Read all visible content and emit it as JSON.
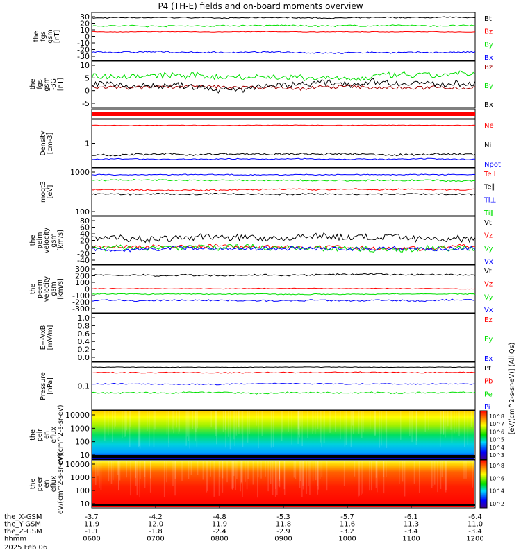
{
  "title": "P4 (TH-E) fields and on-board moments overview",
  "footer": {
    "rows": [
      {
        "label": "the_X-GSM",
        "values": [
          "-3.7",
          "-4.2",
          "-4.8",
          "-5.3",
          "-5.7",
          "-6.1",
          "-6.4"
        ]
      },
      {
        "label": "the_Y-GSM",
        "values": [
          "11.9",
          "12.0",
          "11.9",
          "11.8",
          "11.6",
          "11.3",
          "11.0"
        ]
      },
      {
        "label": "the_Z-GSM",
        "values": [
          "-1.1",
          "-1.8",
          "-2.4",
          "-2.9",
          "-3.2",
          "-3.4",
          "-3.4"
        ]
      },
      {
        "label": "hhmm",
        "values": [
          "0600",
          "0700",
          "0800",
          "0900",
          "1000",
          "1100",
          "1200"
        ]
      }
    ],
    "date": "2025 Feb 06"
  },
  "colorbar_label": "[eV/(cm^2-s-sr-eV)] (All Qs)",
  "colors": {
    "black": "#000000",
    "red": "#ff0000",
    "green": "#00e000",
    "blue": "#0000ff",
    "darkred": "#a00000"
  },
  "chart_data": [
    {
      "type": "line",
      "ylabel": "the fgs gsm [nT]",
      "yticks": [
        "30",
        "20",
        "10",
        "0",
        "-10",
        "-20",
        "-30"
      ],
      "ylim": [
        -30,
        38
      ],
      "series": [
        {
          "name": "Bt",
          "color": "#000000",
          "level": 32,
          "noise": 1.5
        },
        {
          "name": "Bz",
          "color": "#ff0000",
          "level": 11,
          "noise": 0.8
        },
        {
          "name": "By",
          "color": "#00e000",
          "level": 20,
          "noise": 2
        },
        {
          "name": "Bx",
          "color": "#0000ff",
          "level": -20,
          "noise": 2
        }
      ]
    },
    {
      "type": "line",
      "ylabel": "the fgs gsm -BG [nT]",
      "yticks": [
        "10",
        "5",
        "0",
        "-5"
      ],
      "ylim": [
        -9,
        10
      ],
      "series": [
        {
          "name": "Bz",
          "color": "#a00000",
          "level": -1,
          "noise": 1.5
        },
        {
          "name": "By",
          "color": "#00e000",
          "level": 4,
          "noise": 2.5
        },
        {
          "name": "Bx",
          "color": "#000000",
          "level": 0,
          "noise": 2.5
        }
      ]
    },
    {
      "type": "line",
      "ylabel": "",
      "yticks": [],
      "ylim": [
        0,
        1
      ],
      "series": []
    },
    {
      "type": "line",
      "ylabel": "Density [cm-3]",
      "yticks": [
        "1"
      ],
      "ylim": [
        0,
        1
      ],
      "series": [
        {
          "name": "Ne",
          "color": "#ff0000",
          "level": 0.9,
          "noise": 0.01
        },
        {
          "name": "Ni",
          "color": "#000000",
          "level": 0.25,
          "noise": 0.04
        },
        {
          "name": "Npot",
          "color": "#0000ff",
          "level": 0.15,
          "noise": 0.02
        }
      ]
    },
    {
      "type": "line",
      "ylabel": "moqt3 [eV]",
      "yticks": [
        "1000",
        "100"
      ],
      "ylim": [
        0,
        1
      ],
      "series": [
        {
          "name": "Te⊥",
          "color": "#ff0000",
          "level": 0.55,
          "noise": 0.03
        },
        {
          "name": "Te∥",
          "color": "#000000",
          "level": 0.45,
          "noise": 0.03
        },
        {
          "name": "Ti⊥",
          "color": "#0000ff",
          "level": 0.88,
          "noise": 0.02
        },
        {
          "name": "Ti∥",
          "color": "#00e000",
          "level": 0.75,
          "noise": 0.03
        }
      ]
    },
    {
      "type": "line",
      "ylabel": "the peim velocity gsm [km/s]",
      "yticks": [
        "80",
        "60",
        "40",
        "20",
        "0",
        "-20",
        "-40"
      ],
      "ylim": [
        -40,
        85
      ],
      "series": [
        {
          "name": "Vt",
          "color": "#000000",
          "level": 30,
          "noise": 18
        },
        {
          "name": "Vz",
          "color": "#ff0000",
          "level": 5,
          "noise": 10
        },
        {
          "name": "Vy",
          "color": "#00e000",
          "level": 3,
          "noise": 14
        },
        {
          "name": "Vx",
          "color": "#0000ff",
          "level": 0,
          "noise": 10
        }
      ]
    },
    {
      "type": "line",
      "ylabel": "the peem velocity gsm [km/s]",
      "yticks": [
        "300",
        "200",
        "100",
        "0",
        "-100",
        "-200",
        "-300"
      ],
      "ylim": [
        -300,
        320
      ],
      "series": [
        {
          "name": "Vt",
          "color": "#000000",
          "level": 200,
          "noise": 20
        },
        {
          "name": "Vz",
          "color": "#ff0000",
          "level": 15,
          "noise": 8
        },
        {
          "name": "Vy",
          "color": "#00e000",
          "level": -60,
          "noise": 12
        },
        {
          "name": "Vx",
          "color": "#0000ff",
          "level": -150,
          "noise": 20
        }
      ]
    },
    {
      "type": "line",
      "ylabel": "E=-VxB [mV/m]",
      "yticks": [
        "1.0",
        "0.8",
        "0.6",
        "0.4",
        "0.2",
        "0.0"
      ],
      "ylim": [
        0,
        1
      ],
      "series": [
        {
          "name": "Ez",
          "color": "#ff0000",
          "level": null,
          "noise": 0
        },
        {
          "name": "Ey",
          "color": "#00e000",
          "level": null,
          "noise": 0
        },
        {
          "name": "Ex",
          "color": "#0000ff",
          "level": null,
          "noise": 0
        }
      ]
    },
    {
      "type": "line",
      "ylabel": "Pressure [nPa]",
      "yticks": [
        "0.1"
      ],
      "ylim": [
        0,
        1
      ],
      "series": [
        {
          "name": "Pt",
          "color": "#000000",
          "level": 0.92,
          "noise": 0.01
        },
        {
          "name": "Pb",
          "color": "#ff0000",
          "level": 0.8,
          "noise": 0.02
        },
        {
          "name": "Pe",
          "color": "#00e000",
          "level": 0.35,
          "noise": 0.03
        },
        {
          "name": "Pi",
          "color": "#0000ff",
          "level": 0.55,
          "noise": 0.02
        }
      ]
    },
    {
      "type": "heatmap",
      "ylabel": "the peir en eflux eV/(cm^2-s-sr-eV)",
      "yticks": [
        "10000",
        "1000",
        "100",
        "10"
      ],
      "colorbar_ticks": [
        "10^8",
        "10^7",
        "10^6",
        "10^5",
        "10^4",
        "10^3"
      ]
    },
    {
      "type": "heatmap",
      "ylabel": "the peer en eflux eV/(cm^2-s-sr-eV)",
      "yticks": [
        "10000",
        "1000",
        "100",
        "10"
      ],
      "colorbar_ticks": [
        "10^8",
        "10^6",
        "10^4",
        "10^2"
      ]
    }
  ]
}
